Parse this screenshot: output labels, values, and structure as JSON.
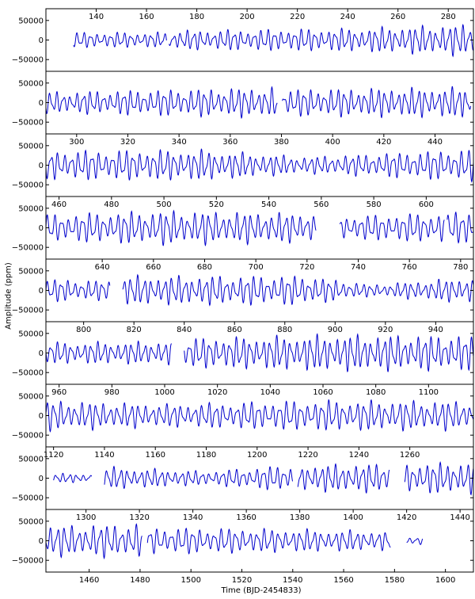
{
  "chart_data": {
    "type": "line",
    "title": "",
    "xlabel": "Time (BJD-2454833)",
    "ylabel": "Amplitude (ppm)",
    "grid": false,
    "line_color": "#0000cc",
    "ylim": [
      -80000,
      80000
    ],
    "yticks": [
      50000,
      0,
      -50000
    ],
    "ytick_labels": [
      "50000",
      "0",
      "−50000"
    ],
    "panels": [
      {
        "xlim": [
          120,
          290
        ],
        "tick_side": "top",
        "xticks": [
          140,
          160,
          180,
          200,
          220,
          240,
          260,
          280
        ],
        "segments": [
          [
            131,
            168
          ],
          [
            169,
            290
          ]
        ],
        "envelope": [
          [
            131,
            20000
          ],
          [
            168,
            20000
          ],
          [
            169,
            25000
          ],
          [
            240,
            30000
          ],
          [
            290,
            42000
          ]
        ]
      },
      {
        "xlim": [
          120,
          290
        ],
        "tick_side": "none",
        "xticks": [],
        "segments": [
          [
            120,
            212
          ],
          [
            214,
            289
          ]
        ],
        "envelope": [
          [
            120,
            28000
          ],
          [
            212,
            40000
          ],
          [
            214,
            35000
          ],
          [
            289,
            40000
          ]
        ]
      },
      {
        "xlim": [
          288,
          455
        ],
        "tick_side": "top",
        "xticks": [
          300,
          320,
          340,
          360,
          380,
          400,
          420,
          440
        ],
        "segments": [
          [
            288,
            455
          ]
        ],
        "envelope": [
          [
            288,
            38000
          ],
          [
            350,
            40000
          ],
          [
            390,
            22000
          ],
          [
            455,
            42000
          ]
        ]
      },
      {
        "xlim": [
          455,
          618
        ],
        "tick_side": "top",
        "xticks": [
          460,
          480,
          500,
          520,
          540,
          560,
          580,
          600
        ],
        "segments": [
          [
            455,
            558
          ],
          [
            567,
            607
          ],
          [
            608,
            618
          ]
        ],
        "envelope": [
          [
            455,
            35000
          ],
          [
            500,
            45000
          ],
          [
            558,
            38000
          ],
          [
            567,
            30000
          ],
          [
            618,
            42000
          ]
        ]
      },
      {
        "xlim": [
          618,
          785
        ],
        "tick_side": "top",
        "xticks": [
          640,
          660,
          680,
          700,
          720,
          740,
          760,
          780
        ],
        "segments": [
          [
            618,
            643
          ],
          [
            648,
            785
          ]
        ],
        "envelope": [
          [
            618,
            30000
          ],
          [
            643,
            25000
          ],
          [
            648,
            38000
          ],
          [
            720,
            38000
          ],
          [
            745,
            15000
          ],
          [
            785,
            35000
          ]
        ]
      },
      {
        "xlim": [
          785,
          955
        ],
        "tick_side": "top",
        "xticks": [
          800,
          820,
          840,
          860,
          880,
          900,
          920,
          940
        ],
        "segments": [
          [
            785,
            835
          ],
          [
            840,
            955
          ]
        ],
        "envelope": [
          [
            785,
            28000
          ],
          [
            835,
            30000
          ],
          [
            840,
            38000
          ],
          [
            900,
            48000
          ],
          [
            955,
            45000
          ]
        ]
      },
      {
        "xlim": [
          955,
          1117
        ],
        "tick_side": "top",
        "xticks": [
          960,
          980,
          1000,
          1020,
          1040,
          1060,
          1080,
          1100
        ],
        "segments": [
          [
            955,
            1117
          ]
        ],
        "envelope": [
          [
            955,
            40000
          ],
          [
            1000,
            30000
          ],
          [
            1060,
            40000
          ],
          [
            1117,
            38000
          ]
        ]
      },
      {
        "xlim": [
          1117,
          1285
        ],
        "tick_side": "top",
        "xticks": [
          1120,
          1140,
          1160,
          1180,
          1200,
          1220,
          1240,
          1260
        ],
        "segments": [
          [
            1120,
            1135
          ],
          [
            1140,
            1214
          ],
          [
            1216,
            1252
          ],
          [
            1258,
            1285
          ]
        ],
        "envelope": [
          [
            1120,
            12000
          ],
          [
            1135,
            12000
          ],
          [
            1140,
            30000
          ],
          [
            1180,
            18000
          ],
          [
            1214,
            35000
          ],
          [
            1252,
            38000
          ],
          [
            1285,
            42000
          ]
        ]
      },
      {
        "xlim": [
          1285,
          1445
        ],
        "tick_side": "top",
        "xticks": [
          1300,
          1320,
          1340,
          1360,
          1380,
          1400,
          1420,
          1440
        ],
        "segments": [
          [
            1285,
            1321
          ],
          [
            1323,
            1414
          ],
          [
            1420,
            1426
          ]
        ],
        "envelope": [
          [
            1285,
            40000
          ],
          [
            1321,
            45000
          ],
          [
            1323,
            35000
          ],
          [
            1380,
            30000
          ],
          [
            1414,
            25000
          ],
          [
            1420,
            10000
          ],
          [
            1426,
            10000
          ]
        ]
      }
    ],
    "bottom_axis": {
      "xlim": [
        1443,
        1611
      ],
      "xticks": [
        1460,
        1480,
        1500,
        1520,
        1540,
        1560,
        1580,
        1600
      ]
    }
  }
}
